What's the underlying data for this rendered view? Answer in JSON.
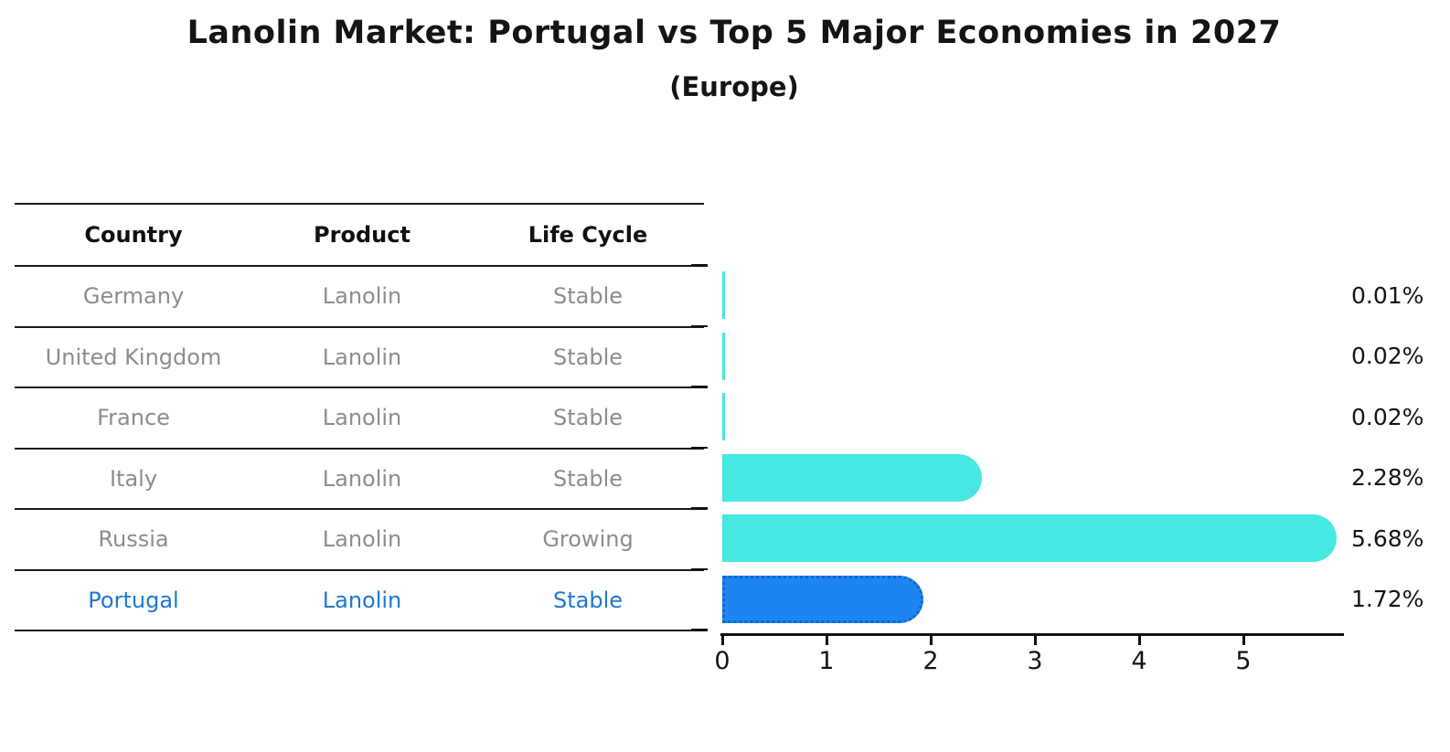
{
  "title": "Lanolin Market: Portugal vs Top 5 Major Economies in 2027",
  "subtitle": "(Europe)",
  "table": {
    "headers": [
      "Country",
      "Product",
      "Life Cycle"
    ],
    "rows": [
      {
        "country": "Germany",
        "product": "Lanolin",
        "life_cycle": "Stable",
        "highlight": false
      },
      {
        "country": "United Kingdom",
        "product": "Lanolin",
        "life_cycle": "Stable",
        "highlight": false
      },
      {
        "country": "France",
        "product": "Lanolin",
        "life_cycle": "Stable",
        "highlight": false
      },
      {
        "country": "Italy",
        "product": "Lanolin",
        "life_cycle": "Stable",
        "highlight": false
      },
      {
        "country": "Russia",
        "product": "Lanolin",
        "life_cycle": "Growing",
        "highlight": false
      },
      {
        "country": "Portugal",
        "product": "Lanolin",
        "life_cycle": "Stable",
        "highlight": true
      }
    ]
  },
  "chart_data": {
    "type": "bar",
    "orientation": "horizontal",
    "title": "Lanolin Market: Portugal vs Top 5 Major Economies in 2027",
    "subtitle": "(Europe)",
    "categories": [
      "Germany",
      "United Kingdom",
      "France",
      "Italy",
      "Russia",
      "Portugal"
    ],
    "values": [
      0.01,
      0.02,
      0.02,
      2.28,
      5.68,
      1.72
    ],
    "value_labels": [
      "0.01%",
      "0.02%",
      "0.02%",
      "2.28%",
      "5.68%",
      "1.72%"
    ],
    "highlight_category": "Portugal",
    "x_ticks": [
      0,
      1,
      2,
      3,
      4,
      5
    ],
    "xlim": [
      0,
      5.95
    ],
    "grid": false,
    "legend": false,
    "colors": {
      "bar": "#47E7E2",
      "highlight_bar": "#1E85F0",
      "highlight_border": "#0C66D6",
      "axis": "#111111",
      "value_label": "#151515",
      "table_text": "#8C8C8C",
      "table_header_text": "#111111",
      "highlight_text": "#1F77D1",
      "title_text": "#141414"
    }
  }
}
